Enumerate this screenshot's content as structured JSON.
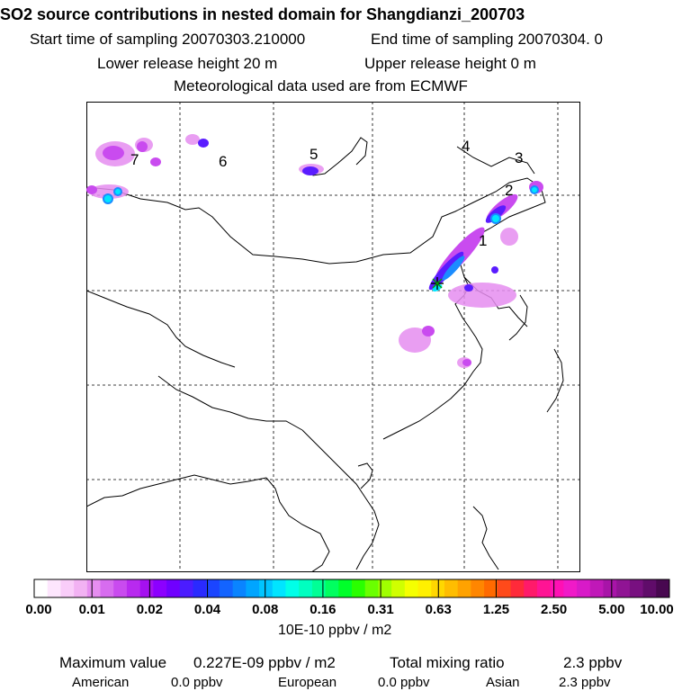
{
  "header": {
    "title": "SO2 source contributions in nested domain for Shangdianzi_200703",
    "start_time": "Start time of sampling 20070303.210000",
    "end_time": "End time of sampling 20070304.     0",
    "lower_height": "Lower release height   20 m",
    "upper_height": "Upper release height    0 m",
    "met_data": "Meteorological data used are from ECMWF"
  },
  "map": {
    "receptor_marker": "station-star",
    "region_labels": [
      "1",
      "2",
      "3",
      "4",
      "5",
      "6",
      "7"
    ]
  },
  "colorbar": {
    "ticks": [
      "0.00",
      "0.01",
      "0.02",
      "0.04",
      "0.08",
      "0.16",
      "0.31",
      "0.63",
      "1.25",
      "2.50",
      "5.00",
      "10.00"
    ],
    "colors": [
      "#ffffff",
      "#fde6fd",
      "#f9cdf9",
      "#f2b2f3",
      "#e68ef0",
      "#d76cef",
      "#c94bef",
      "#b82aef",
      "#a511f0",
      "#8c00ff",
      "#7000ff",
      "#4b1cff",
      "#2a2aff",
      "#1b45ff",
      "#1364ff",
      "#0a84ff",
      "#00a5ff",
      "#00c5ff",
      "#00e5ff",
      "#00ffe8",
      "#00ffc0",
      "#00ff96",
      "#00ff60",
      "#00ff2a",
      "#2aff00",
      "#6aff00",
      "#a0ff00",
      "#d0ff00",
      "#f5ff00",
      "#fff000",
      "#ffd700",
      "#ffbd00",
      "#ffa200",
      "#ff8600",
      "#ff6a00",
      "#ff4a1a",
      "#ff2a3a",
      "#ff1a6a",
      "#ff1494",
      "#ff10b4",
      "#f01ac8",
      "#d81ac8",
      "#c018b8",
      "#a814a8",
      "#901494",
      "#781080",
      "#600c6a",
      "#480850"
    ],
    "units": "10E-10 ppbv / m2"
  },
  "stats": {
    "max_label": "Maximum value",
    "max_value": "0.227E-09 ppbv / m2",
    "total_label": "Total mixing ratio",
    "total_value": "2.3 ppbv",
    "sources": [
      {
        "name": "American",
        "value": "0.0 ppbv"
      },
      {
        "name": "European",
        "value": "0.0 ppbv"
      },
      {
        "name": "Asian",
        "value": "2.3 ppbv"
      }
    ]
  }
}
